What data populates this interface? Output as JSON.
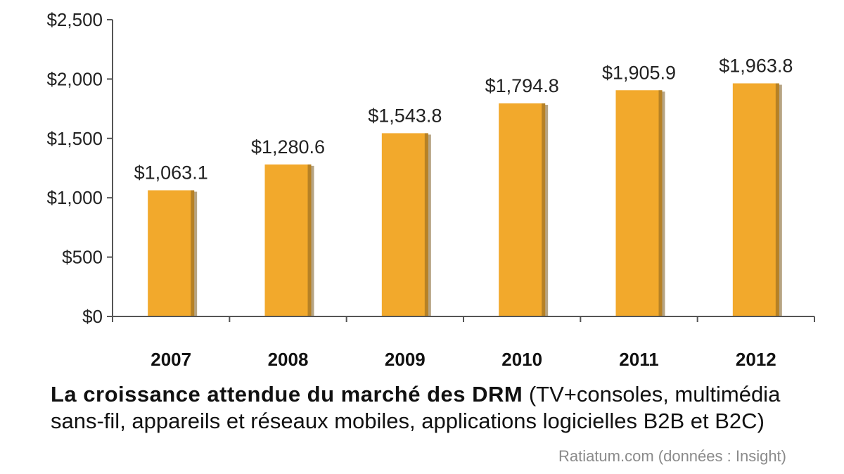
{
  "chart_data": {
    "type": "bar",
    "categories": [
      "2007",
      "2008",
      "2009",
      "2010",
      "2011",
      "2012"
    ],
    "values": [
      1063.1,
      1280.6,
      1543.8,
      1794.8,
      1905.9,
      1963.8
    ],
    "value_labels": [
      "$1,063.1",
      "$1,280.6",
      "$1,543.8",
      "$1,794.8",
      "$1,905.9",
      "$1,963.8"
    ],
    "ylim": [
      0,
      2500
    ],
    "yticks": [
      0,
      500,
      1000,
      1500,
      2000,
      2500
    ],
    "ytick_labels": [
      "$0",
      "$500",
      "$1,000",
      "$1,500",
      "$2,000",
      "$2,500"
    ],
    "bar_color": "#F2A92C",
    "bar_shade_color": "#7A5A1E",
    "grid": false,
    "legend": "none"
  },
  "caption": {
    "bold": "La croissance attendue du marché des DRM",
    "rest": " (TV+consoles, multimédia sans-fil, appareils et réseaux mobiles, applications logicielles B2B et B2C)"
  },
  "source": "Ratiatum.com (données : Insight)"
}
